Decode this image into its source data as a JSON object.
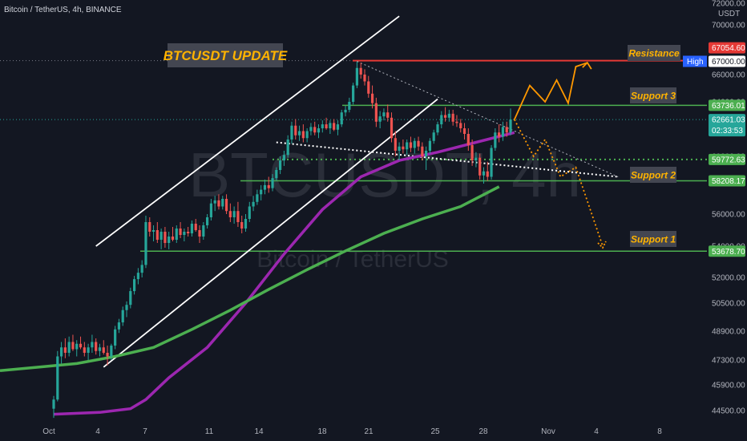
{
  "header": {
    "symbol_line": "Bitcoin / TetherUS, 4h, BINANCE",
    "currency": "USDT"
  },
  "colors": {
    "background": "#131722",
    "up_candle": "#26a69a",
    "down_candle": "#ef5350",
    "ma_fast": "#9c27b0",
    "ma_slow": "#4caf50",
    "support_line": "#4caf50",
    "resistance_line": "#e53935",
    "projection": "#ff9800",
    "label_text": "#ffb300",
    "label_bg": "#434651"
  },
  "watermark": {
    "main": "BTCUSDT, 4h",
    "sub": "Bitcoin / TetherUS"
  },
  "chart_data": {
    "type": "candlestick",
    "title": "BTCUSDT UPDATE",
    "xlabel": "",
    "ylabel": "",
    "ylim": [
      44000,
      72000
    ],
    "x_ticks": [
      "Oct",
      "4",
      "7",
      "11",
      "14",
      "18",
      "21",
      "25",
      "28",
      "Nov",
      "4",
      "8"
    ],
    "y_ticks": [
      44500,
      45900,
      47300,
      48900,
      50500,
      52000,
      54000,
      56000,
      58000,
      60000,
      62000,
      64000,
      66000,
      68000,
      70000,
      72000
    ],
    "horizontal_levels": [
      {
        "name": "Resistance",
        "value": 67054.6,
        "label": "67054.60",
        "color": "#e53935"
      },
      {
        "name": "High",
        "value": 67000.0,
        "label": "67000.00"
      },
      {
        "name": "Support 3",
        "value": 63736.01,
        "label": "63736.01",
        "color": "#4caf50"
      },
      {
        "name": "Last price",
        "value": 62661.03,
        "label": "62661.03",
        "countdown": "02:33:53"
      },
      {
        "name": "",
        "value": 59772.63,
        "label": "59772.63",
        "style": "dotted"
      },
      {
        "name": "Support 2",
        "value": 58208.17,
        "label": "58208.17",
        "color": "#4caf50"
      },
      {
        "name": "Support 1",
        "value": 53678.7,
        "label": "53678.70",
        "color": "#4caf50"
      }
    ],
    "annotations": [
      "BTCUSDT UPDATE",
      "Resistance",
      "Support 3",
      "Support 2",
      "Support 1"
    ],
    "candles": [
      {
        "o": 44600,
        "h": 45300,
        "l": 44100,
        "c": 45100
      },
      {
        "o": 45100,
        "h": 47800,
        "l": 45000,
        "c": 47500
      },
      {
        "o": 47500,
        "h": 48300,
        "l": 47100,
        "c": 48000
      },
      {
        "o": 48000,
        "h": 48500,
        "l": 47400,
        "c": 47700
      },
      {
        "o": 47700,
        "h": 48600,
        "l": 47500,
        "c": 48300
      },
      {
        "o": 48300,
        "h": 48700,
        "l": 47800,
        "c": 47900
      },
      {
        "o": 47900,
        "h": 48400,
        "l": 47500,
        "c": 48200
      },
      {
        "o": 48200,
        "h": 48600,
        "l": 47900,
        "c": 48000
      },
      {
        "o": 48000,
        "h": 48300,
        "l": 47500,
        "c": 47700
      },
      {
        "o": 47700,
        "h": 48200,
        "l": 47300,
        "c": 48000
      },
      {
        "o": 48000,
        "h": 48700,
        "l": 47700,
        "c": 48300
      },
      {
        "o": 48300,
        "h": 48500,
        "l": 47600,
        "c": 47800
      },
      {
        "o": 47800,
        "h": 48200,
        "l": 47500,
        "c": 48000
      },
      {
        "o": 48000,
        "h": 48400,
        "l": 47600,
        "c": 47700
      },
      {
        "o": 47700,
        "h": 48100,
        "l": 47000,
        "c": 47500
      },
      {
        "o": 47500,
        "h": 48200,
        "l": 47300,
        "c": 48100
      },
      {
        "o": 48100,
        "h": 49200,
        "l": 47900,
        "c": 49000
      },
      {
        "o": 49000,
        "h": 49600,
        "l": 48800,
        "c": 49400
      },
      {
        "o": 49400,
        "h": 50300,
        "l": 49200,
        "c": 50100
      },
      {
        "o": 50100,
        "h": 50600,
        "l": 49700,
        "c": 50400
      },
      {
        "o": 50400,
        "h": 51400,
        "l": 50200,
        "c": 51200
      },
      {
        "o": 51200,
        "h": 52100,
        "l": 51000,
        "c": 51900
      },
      {
        "o": 51900,
        "h": 52600,
        "l": 51600,
        "c": 52300
      },
      {
        "o": 52300,
        "h": 53100,
        "l": 52000,
        "c": 52800
      },
      {
        "o": 52800,
        "h": 55900,
        "l": 52600,
        "c": 55500
      },
      {
        "o": 55500,
        "h": 55800,
        "l": 54600,
        "c": 54900
      },
      {
        "o": 54900,
        "h": 55300,
        "l": 54300,
        "c": 55000
      },
      {
        "o": 55000,
        "h": 55500,
        "l": 54200,
        "c": 54400
      },
      {
        "o": 54400,
        "h": 55100,
        "l": 53800,
        "c": 54900
      },
      {
        "o": 54900,
        "h": 55200,
        "l": 53900,
        "c": 54200
      },
      {
        "o": 54200,
        "h": 54900,
        "l": 53800,
        "c": 54600
      },
      {
        "o": 54600,
        "h": 55200,
        "l": 54300,
        "c": 54400
      },
      {
        "o": 54400,
        "h": 55300,
        "l": 54200,
        "c": 55100
      },
      {
        "o": 55100,
        "h": 55500,
        "l": 54500,
        "c": 54700
      },
      {
        "o": 54700,
        "h": 55100,
        "l": 54300,
        "c": 54900
      },
      {
        "o": 54900,
        "h": 55200,
        "l": 54600,
        "c": 54800
      },
      {
        "o": 54800,
        "h": 55600,
        "l": 54600,
        "c": 55400
      },
      {
        "o": 55400,
        "h": 55700,
        "l": 54900,
        "c": 55000
      },
      {
        "o": 55000,
        "h": 55300,
        "l": 54200,
        "c": 54600
      },
      {
        "o": 54600,
        "h": 55500,
        "l": 54400,
        "c": 55300
      },
      {
        "o": 55300,
        "h": 56000,
        "l": 55100,
        "c": 55800
      },
      {
        "o": 55800,
        "h": 57000,
        "l": 55600,
        "c": 56700
      },
      {
        "o": 56700,
        "h": 57200,
        "l": 56200,
        "c": 56900
      },
      {
        "o": 56900,
        "h": 57300,
        "l": 56300,
        "c": 56500
      },
      {
        "o": 56500,
        "h": 57200,
        "l": 56300,
        "c": 57000
      },
      {
        "o": 57000,
        "h": 57300,
        "l": 56000,
        "c": 56200
      },
      {
        "o": 56200,
        "h": 56700,
        "l": 55500,
        "c": 55800
      },
      {
        "o": 55800,
        "h": 56500,
        "l": 55400,
        "c": 56200
      },
      {
        "o": 56200,
        "h": 56800,
        "l": 55200,
        "c": 55500
      },
      {
        "o": 55500,
        "h": 55900,
        "l": 54800,
        "c": 55100
      },
      {
        "o": 55100,
        "h": 56000,
        "l": 54900,
        "c": 55700
      },
      {
        "o": 55700,
        "h": 56800,
        "l": 55500,
        "c": 56500
      },
      {
        "o": 56500,
        "h": 57200,
        "l": 56200,
        "c": 56800
      },
      {
        "o": 56800,
        "h": 57600,
        "l": 56600,
        "c": 57300
      },
      {
        "o": 57300,
        "h": 57900,
        "l": 56900,
        "c": 57600
      },
      {
        "o": 57600,
        "h": 58300,
        "l": 57300,
        "c": 57900
      },
      {
        "o": 57900,
        "h": 58500,
        "l": 57400,
        "c": 57700
      },
      {
        "o": 57700,
        "h": 58700,
        "l": 57500,
        "c": 58400
      },
      {
        "o": 58400,
        "h": 59200,
        "l": 58200,
        "c": 59000
      },
      {
        "o": 59000,
        "h": 60000,
        "l": 58700,
        "c": 59700
      },
      {
        "o": 59700,
        "h": 60400,
        "l": 59300,
        "c": 60100
      },
      {
        "o": 60100,
        "h": 61500,
        "l": 59900,
        "c": 61200
      },
      {
        "o": 61200,
        "h": 62500,
        "l": 60900,
        "c": 62200
      },
      {
        "o": 62200,
        "h": 62700,
        "l": 61200,
        "c": 61500
      },
      {
        "o": 61500,
        "h": 62200,
        "l": 61100,
        "c": 61800
      },
      {
        "o": 61800,
        "h": 62300,
        "l": 61000,
        "c": 61300
      },
      {
        "o": 61300,
        "h": 62000,
        "l": 61000,
        "c": 61800
      },
      {
        "o": 61800,
        "h": 62400,
        "l": 61500,
        "c": 62100
      },
      {
        "o": 62100,
        "h": 62500,
        "l": 61500,
        "c": 61700
      },
      {
        "o": 61700,
        "h": 62300,
        "l": 61300,
        "c": 62000
      },
      {
        "o": 62000,
        "h": 62600,
        "l": 61700,
        "c": 62300
      },
      {
        "o": 62300,
        "h": 62800,
        "l": 61900,
        "c": 62000
      },
      {
        "o": 62000,
        "h": 62600,
        "l": 61600,
        "c": 62400
      },
      {
        "o": 62400,
        "h": 62700,
        "l": 61800,
        "c": 61900
      },
      {
        "o": 61900,
        "h": 62600,
        "l": 61500,
        "c": 62300
      },
      {
        "o": 62300,
        "h": 63400,
        "l": 62100,
        "c": 63200
      },
      {
        "o": 63200,
        "h": 63700,
        "l": 62900,
        "c": 63400
      },
      {
        "o": 63400,
        "h": 64300,
        "l": 63200,
        "c": 64000
      },
      {
        "o": 64000,
        "h": 65400,
        "l": 63800,
        "c": 65200
      },
      {
        "o": 65200,
        "h": 67000,
        "l": 65000,
        "c": 66500
      },
      {
        "o": 66500,
        "h": 66900,
        "l": 65700,
        "c": 66000
      },
      {
        "o": 66000,
        "h": 66400,
        "l": 65200,
        "c": 65500
      },
      {
        "o": 65500,
        "h": 65900,
        "l": 64300,
        "c": 64600
      },
      {
        "o": 64600,
        "h": 65200,
        "l": 63500,
        "c": 63900
      },
      {
        "o": 63900,
        "h": 64300,
        "l": 62100,
        "c": 62500
      },
      {
        "o": 62500,
        "h": 63300,
        "l": 62000,
        "c": 62900
      },
      {
        "o": 62900,
        "h": 63500,
        "l": 62600,
        "c": 63200
      },
      {
        "o": 63200,
        "h": 63800,
        "l": 62500,
        "c": 62800
      },
      {
        "o": 62800,
        "h": 63200,
        "l": 61000,
        "c": 61300
      },
      {
        "o": 61300,
        "h": 61800,
        "l": 60000,
        "c": 60400
      },
      {
        "o": 60400,
        "h": 61000,
        "l": 59700,
        "c": 60700
      },
      {
        "o": 60700,
        "h": 61200,
        "l": 60200,
        "c": 60500
      },
      {
        "o": 60500,
        "h": 61200,
        "l": 60100,
        "c": 61000
      },
      {
        "o": 61000,
        "h": 61400,
        "l": 60300,
        "c": 60600
      },
      {
        "o": 60600,
        "h": 61300,
        "l": 60200,
        "c": 61100
      },
      {
        "o": 61100,
        "h": 61400,
        "l": 60400,
        "c": 60700
      },
      {
        "o": 60700,
        "h": 61000,
        "l": 59700,
        "c": 60000
      },
      {
        "o": 60000,
        "h": 60700,
        "l": 59000,
        "c": 60400
      },
      {
        "o": 60400,
        "h": 61300,
        "l": 60200,
        "c": 61100
      },
      {
        "o": 61100,
        "h": 61900,
        "l": 60900,
        "c": 61700
      },
      {
        "o": 61700,
        "h": 62500,
        "l": 61500,
        "c": 62300
      },
      {
        "o": 62300,
        "h": 63300,
        "l": 62000,
        "c": 63000
      },
      {
        "o": 63000,
        "h": 63600,
        "l": 62500,
        "c": 62800
      },
      {
        "o": 62800,
        "h": 63400,
        "l": 62500,
        "c": 63100
      },
      {
        "o": 63100,
        "h": 63400,
        "l": 62200,
        "c": 62500
      },
      {
        "o": 62500,
        "h": 63000,
        "l": 62100,
        "c": 62400
      },
      {
        "o": 62400,
        "h": 62700,
        "l": 61700,
        "c": 62000
      },
      {
        "o": 62000,
        "h": 62400,
        "l": 61200,
        "c": 61600
      },
      {
        "o": 61600,
        "h": 62000,
        "l": 60400,
        "c": 60800
      },
      {
        "o": 60800,
        "h": 61200,
        "l": 59300,
        "c": 59700
      },
      {
        "o": 59700,
        "h": 60300,
        "l": 59200,
        "c": 59900
      },
      {
        "o": 59900,
        "h": 60200,
        "l": 58300,
        "c": 58600
      },
      {
        "o": 58600,
        "h": 59200,
        "l": 58000,
        "c": 58900
      },
      {
        "o": 58900,
        "h": 59600,
        "l": 58200,
        "c": 58500
      },
      {
        "o": 58500,
        "h": 60800,
        "l": 58300,
        "c": 60600
      },
      {
        "o": 60600,
        "h": 62000,
        "l": 60400,
        "c": 61700
      },
      {
        "o": 61700,
        "h": 62300,
        "l": 61000,
        "c": 61400
      },
      {
        "o": 61400,
        "h": 62500,
        "l": 61100,
        "c": 62100
      },
      {
        "o": 62100,
        "h": 62500,
        "l": 61400,
        "c": 61700
      },
      {
        "o": 61700,
        "h": 63500,
        "l": 61500,
        "c": 62661
      }
    ],
    "series": [
      {
        "name": "",
        "color": "#9c27b0",
        "values": [
          [
            0,
            44300
          ],
          [
            12,
            44400
          ],
          [
            20,
            44600
          ],
          [
            24,
            45100
          ],
          [
            30,
            46300
          ],
          [
            40,
            48000
          ],
          [
            50,
            50500
          ],
          [
            60,
            53500
          ],
          [
            70,
            56300
          ],
          [
            80,
            58500
          ],
          [
            90,
            59700
          ],
          [
            100,
            60300
          ],
          [
            110,
            61000
          ],
          [
            120,
            61700
          ]
        ]
      },
      {
        "name": "",
        "color": "#4caf50",
        "values": [
          [
            0,
            46700
          ],
          [
            10,
            46900
          ],
          [
            20,
            47100
          ],
          [
            30,
            47500
          ],
          [
            40,
            48000
          ],
          [
            50,
            49000
          ],
          [
            60,
            50100
          ],
          [
            70,
            51300
          ],
          [
            80,
            52500
          ],
          [
            90,
            53700
          ],
          [
            100,
            54800
          ],
          [
            110,
            55700
          ],
          [
            120,
            56500
          ],
          [
            130,
            57800
          ]
        ]
      }
    ],
    "trend_lines": [
      {
        "name": "channel-upper",
        "points": [
          [
            11,
            54000
          ],
          [
            90,
            70800
          ]
        ]
      },
      {
        "name": "channel-lower",
        "points": [
          [
            13,
            46900
          ],
          [
            100,
            64200
          ]
        ]
      },
      {
        "name": "wedge-upper",
        "points": [
          [
            79,
            67000
          ],
          [
            147,
            58500
          ]
        ]
      },
      {
        "name": "wedge-lower",
        "points": [
          [
            58,
            61000
          ],
          [
            147,
            58500
          ]
        ]
      }
    ],
    "projection": {
      "up": [
        [
          120,
          62661
        ],
        [
          124,
          65200
        ],
        [
          128,
          64000
        ],
        [
          131,
          65600
        ],
        [
          134,
          63900
        ],
        [
          136,
          66600
        ],
        [
          139,
          66900
        ]
      ],
      "down": [
        [
          120,
          62661
        ],
        [
          125,
          60000
        ],
        [
          128,
          61200
        ],
        [
          132,
          58500
        ],
        [
          136,
          59200
        ],
        [
          143,
          54000
        ]
      ]
    }
  }
}
